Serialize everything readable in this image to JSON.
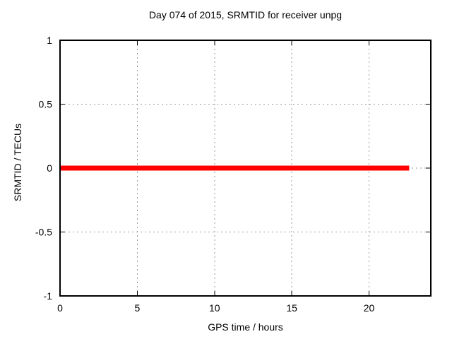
{
  "window": {
    "background": "#ffffff"
  },
  "chart_data": {
    "type": "line",
    "title": "Day 074 of 2015, SRMTID for receiver unpg",
    "xlabel": "GPS time / hours",
    "ylabel": "SRMTID / TECUs",
    "xlim": [
      0,
      24
    ],
    "ylim": [
      -1,
      1
    ],
    "xticks": [
      0,
      5,
      10,
      15,
      20
    ],
    "yticks": [
      -1,
      -0.5,
      0,
      0.5,
      1
    ],
    "grid": "dashed-at-major-ticks",
    "legend": "none",
    "colors": {
      "line": "#ff0000",
      "border": "#000000",
      "grid": "#999999",
      "background": "#ffffff",
      "text": "#000000"
    },
    "series": [
      {
        "name": "SRMTID",
        "color": "#ff0000",
        "linewidth": 7,
        "x": [
          0,
          22.6
        ],
        "y": [
          0,
          0
        ]
      }
    ]
  }
}
